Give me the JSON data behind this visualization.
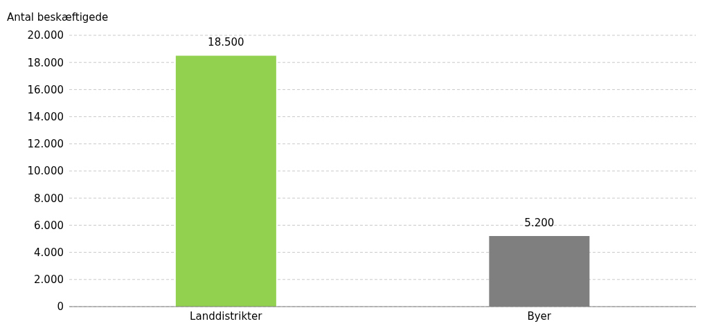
{
  "chart_data": {
    "type": "bar",
    "ylabel": "Antal beskæftigede",
    "categories": [
      "Landdistrikter",
      "Byer"
    ],
    "values": [
      18500,
      5200
    ],
    "colors": [
      "#92d050",
      "#7f7f7f"
    ],
    "value_labels": [
      "18.500",
      "5.200"
    ],
    "ylim": [
      0,
      20000
    ],
    "yticks": [
      {
        "value": 0,
        "label": "0"
      },
      {
        "value": 2000,
        "label": "2.000"
      },
      {
        "value": 4000,
        "label": "4.000"
      },
      {
        "value": 6000,
        "label": "6.000"
      },
      {
        "value": 8000,
        "label": "8.000"
      },
      {
        "value": 10000,
        "label": "10.000"
      },
      {
        "value": 12000,
        "label": "12.000"
      },
      {
        "value": 14000,
        "label": "14.000"
      },
      {
        "value": 16000,
        "label": "16.000"
      },
      {
        "value": 18000,
        "label": "18.000"
      },
      {
        "value": 20000,
        "label": "20.000"
      }
    ],
    "grid": "y",
    "legend": false
  }
}
